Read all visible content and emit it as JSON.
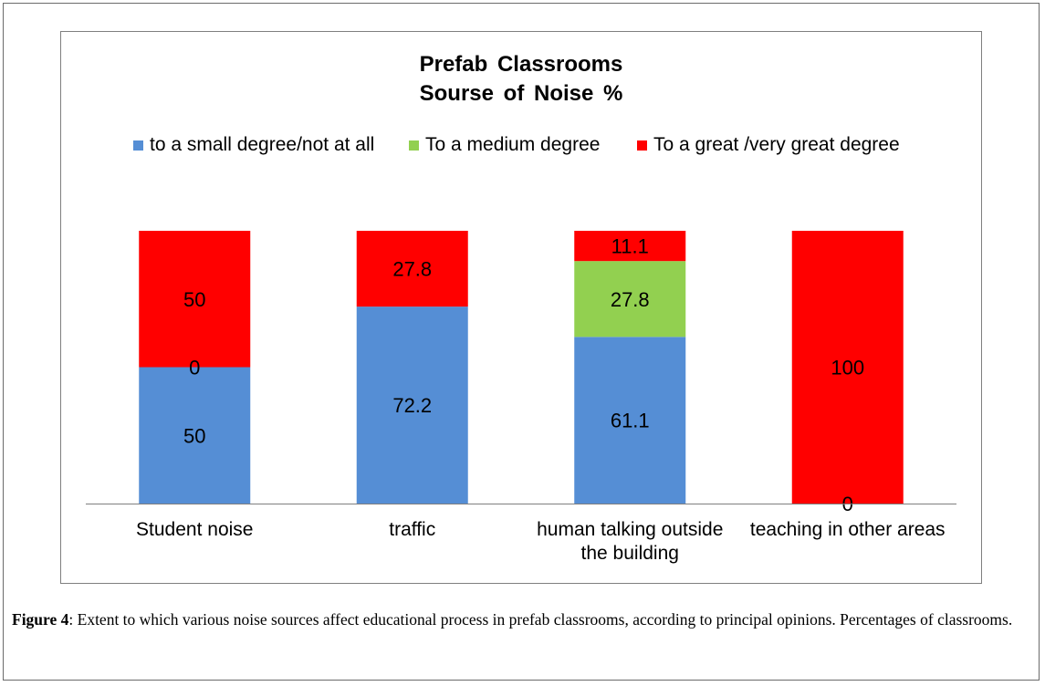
{
  "chart_data": {
    "type": "bar",
    "stacked": true,
    "title": [
      "Prefab Classrooms",
      "Sourse of Noise %"
    ],
    "categories": [
      [
        "Student noise"
      ],
      [
        "traffic"
      ],
      [
        "human talking outside",
        "the building"
      ],
      [
        "teaching in other areas"
      ]
    ],
    "series": [
      {
        "name": "to a small degree/not at all",
        "color": "#558ED5",
        "values": [
          50,
          72.2,
          61.1,
          0
        ],
        "labels": [
          "50",
          "72.2",
          "61.1",
          "0"
        ]
      },
      {
        "name": "To a medium degree",
        "color": "#92D050",
        "values": [
          0,
          0,
          27.8,
          0
        ],
        "labels": [
          "0",
          "",
          "27.8",
          ""
        ]
      },
      {
        "name": "To a great /very great degree",
        "color": "#FF0000",
        "values": [
          50,
          27.8,
          11.1,
          100
        ],
        "labels": [
          "50",
          "27.8",
          "11.1",
          "100"
        ]
      }
    ],
    "ylim": [
      0,
      100
    ],
    "legend_position": "top",
    "grid": false
  },
  "caption": {
    "label": "Figure 4",
    "text": ": Extent to which various noise sources affect educational process in prefab classrooms, according to principal opinions. Percentages of classrooms."
  }
}
